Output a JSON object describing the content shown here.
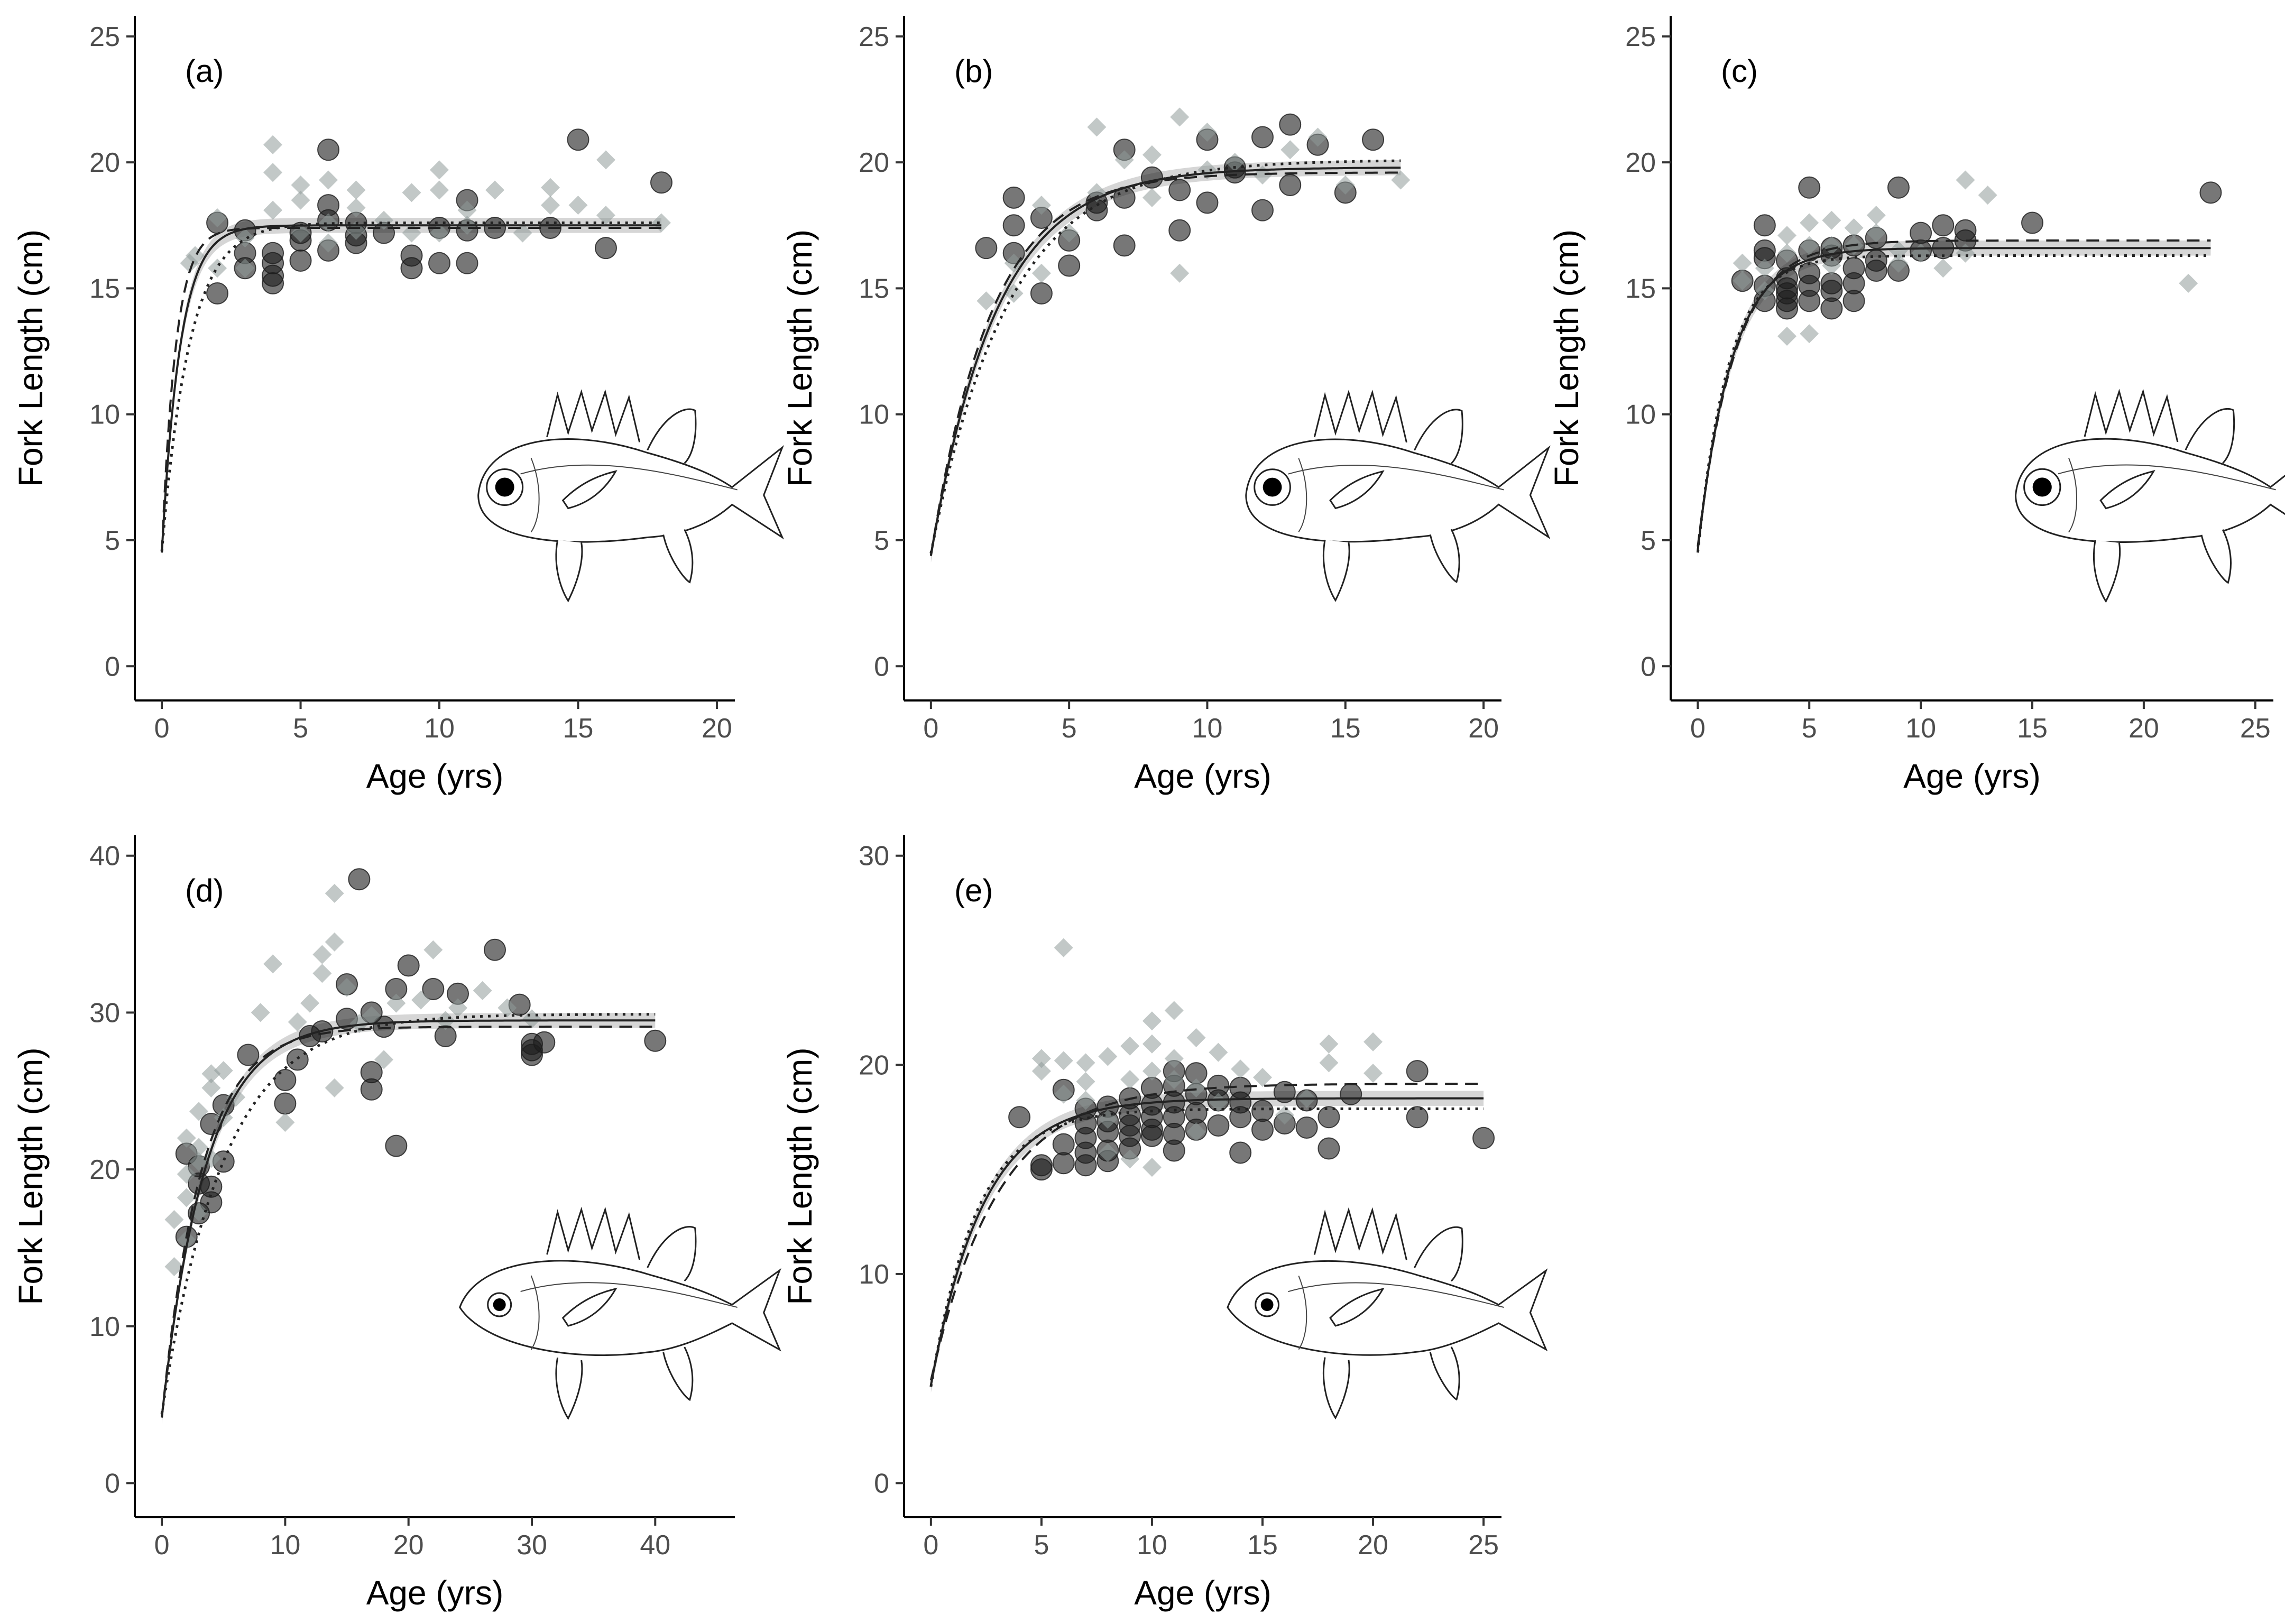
{
  "colors": {
    "female": "#1c1c1c",
    "male": "#8f9a99",
    "axis": "#000000",
    "ci_band": "#d6d6d6"
  },
  "chart_data": [
    {
      "type": "scatter",
      "panel_label": "(a)",
      "xlabel": "Age (yrs)",
      "ylabel": "Fork Length (cm)",
      "xlim": [
        0,
        20
      ],
      "ylim": [
        0,
        25
      ],
      "xticks": [
        0,
        5,
        10,
        15,
        20
      ],
      "yticks": [
        0,
        5,
        10,
        15,
        20,
        25
      ],
      "x_max_fit": 18,
      "curves": {
        "combined": {
          "Linf": 17.5,
          "K": 1.5,
          "t0": -0.2
        },
        "female": {
          "Linf": 17.4,
          "K": 2.0,
          "t0": -0.15
        },
        "male": {
          "Linf": 17.6,
          "K": 1.0,
          "t0": -0.3
        }
      },
      "series": [
        {
          "name": "Female",
          "marker": "circle",
          "x": [
            2,
            2,
            3,
            3,
            3,
            4,
            4,
            4,
            4,
            5,
            5,
            5,
            6,
            6,
            6,
            6,
            7,
            7,
            7,
            8,
            9,
            9,
            10,
            10,
            11,
            11,
            11,
            12,
            14,
            15,
            16,
            18
          ],
          "y": [
            17.6,
            14.8,
            17.3,
            16.4,
            15.8,
            15.5,
            16,
            15.2,
            16.4,
            16.1,
            17.2,
            16.9,
            20.5,
            18.3,
            17.7,
            16.5,
            17.1,
            16.8,
            17.6,
            17.2,
            16.3,
            15.8,
            17.4,
            16,
            18.5,
            17.3,
            16,
            17.4,
            17.4,
            20.9,
            16.6,
            19.2
          ]
        },
        {
          "name": "Male",
          "marker": "diamond",
          "x": [
            1,
            1.2,
            2,
            2,
            3,
            3,
            4,
            4,
            4,
            5,
            5,
            5,
            6,
            6,
            6,
            7,
            7,
            7,
            8,
            9,
            9,
            10,
            10,
            10,
            11,
            11,
            12,
            13,
            14,
            14,
            15,
            16,
            16,
            18
          ],
          "y": [
            16,
            16.3,
            17.8,
            15.8,
            17,
            15.8,
            20.7,
            19.6,
            18.1,
            18.5,
            19.1,
            17.2,
            19.3,
            17.6,
            16.8,
            18.9,
            18.2,
            17.3,
            17.7,
            17.2,
            18.8,
            19.7,
            18.9,
            17.2,
            18.1,
            17.5,
            18.9,
            17.2,
            19,
            18.3,
            18.3,
            20.1,
            17.9,
            17.6
          ]
        }
      ],
      "illustration": "squirrelfish-icon"
    },
    {
      "type": "scatter",
      "panel_label": "(b)",
      "xlabel": "Age (yrs)",
      "ylabel": "Fork Length (cm)",
      "xlim": [
        0,
        20
      ],
      "ylim": [
        0,
        25
      ],
      "xticks": [
        0,
        5,
        10,
        15,
        20
      ],
      "yticks": [
        0,
        5,
        10,
        15,
        20,
        25
      ],
      "x_max_fit": 17,
      "curves": {
        "combined": {
          "Linf": 19.8,
          "K": 0.42,
          "t0": -0.6
        },
        "female": {
          "Linf": 19.6,
          "K": 0.46,
          "t0": -0.55
        },
        "male": {
          "Linf": 20.1,
          "K": 0.36,
          "t0": -0.7
        }
      },
      "series": [
        {
          "name": "Female",
          "marker": "circle",
          "x": [
            2,
            3,
            3,
            3,
            4,
            4,
            5,
            5,
            6,
            6,
            7,
            7,
            7,
            8,
            9,
            9,
            10,
            10,
            11,
            11,
            12,
            12,
            13,
            13,
            14,
            15,
            16
          ],
          "y": [
            16.6,
            18.6,
            17.5,
            16.4,
            14.8,
            17.8,
            16.9,
            15.9,
            18.1,
            18.4,
            20.5,
            16.7,
            18.6,
            19.4,
            17.3,
            18.9,
            20.9,
            18.4,
            19.6,
            19.8,
            21,
            18.1,
            21.5,
            19.1,
            20.7,
            18.8,
            20.9
          ]
        },
        {
          "name": "Male",
          "marker": "diamond",
          "x": [
            2,
            3,
            3,
            4,
            4,
            5,
            6,
            6,
            7,
            8,
            8,
            9,
            9,
            10,
            10,
            11,
            12,
            13,
            14,
            15,
            17
          ],
          "y": [
            14.5,
            14.8,
            16,
            18.3,
            15.6,
            17.2,
            21.4,
            18.8,
            20.1,
            18.6,
            20.3,
            21.8,
            15.6,
            21.2,
            19.7,
            20,
            19.5,
            20.5,
            21,
            19.1,
            19.3
          ]
        }
      ],
      "illustration": "squirrelfish-icon"
    },
    {
      "type": "scatter",
      "panel_label": "(c)",
      "xlabel": "Age (yrs)",
      "ylabel": "Fork Length (cm)",
      "xlim": [
        0,
        25
      ],
      "ylim": [
        0,
        25
      ],
      "xticks": [
        0,
        5,
        10,
        15,
        20,
        25
      ],
      "yticks": [
        0,
        5,
        10,
        15,
        20,
        25
      ],
      "x_max_fit": 23,
      "curves": {
        "combined": {
          "Linf": 16.6,
          "K": 0.65,
          "t0": -0.5
        },
        "female": {
          "Linf": 16.9,
          "K": 0.6,
          "t0": -0.55
        },
        "male": {
          "Linf": 16.3,
          "K": 0.72,
          "t0": -0.45
        }
      },
      "series": [
        {
          "name": "Female",
          "marker": "circle",
          "x": [
            2,
            3,
            3,
            3,
            3,
            3,
            4,
            4,
            4,
            4,
            4,
            4,
            5,
            5,
            5,
            5,
            5,
            6,
            6,
            6,
            6,
            6,
            7,
            7,
            7,
            7,
            8,
            8,
            8,
            9,
            9,
            10,
            10,
            11,
            11,
            12,
            12,
            15,
            23
          ],
          "y": [
            15.3,
            17.5,
            16.5,
            16.2,
            15.1,
            14.5,
            16.1,
            15.4,
            14.8,
            14.5,
            14.2,
            15,
            19,
            15.6,
            15.1,
            14.5,
            16.5,
            16.3,
            15.2,
            14.9,
            14.2,
            16.6,
            15.2,
            16.7,
            14.5,
            15.8,
            17,
            16.1,
            15.7,
            19,
            15.7,
            17.2,
            16.5,
            17.5,
            16.6,
            17.3,
            16.9,
            17.6,
            18.8
          ]
        },
        {
          "name": "Male",
          "marker": "diamond",
          "x": [
            2,
            2,
            3,
            3,
            4,
            4,
            4,
            5,
            5,
            5,
            6,
            6,
            6,
            7,
            7,
            8,
            8,
            9,
            9,
            10,
            11,
            12,
            12,
            13,
            22
          ],
          "y": [
            15.3,
            16,
            15.8,
            14.9,
            17.1,
            13.1,
            16.4,
            17.6,
            13.2,
            16.7,
            17.7,
            15.9,
            16.7,
            16.7,
            17.4,
            17.9,
            17.2,
            16.5,
            16,
            16.4,
            15.8,
            19.3,
            16.4,
            18.7,
            15.2
          ]
        }
      ],
      "illustration": "squirrelfish-icon"
    },
    {
      "type": "scatter",
      "panel_label": "(d)",
      "xlabel": "Age (yrs)",
      "ylabel": "Fork Length (cm)",
      "xlim": [
        0,
        45
      ],
      "ylim": [
        0,
        40
      ],
      "xticks": [
        0,
        10,
        20,
        30,
        40
      ],
      "yticks": [
        0,
        10,
        20,
        30,
        40
      ],
      "x_max_fit": 40,
      "curves": {
        "combined": {
          "Linf": 29.5,
          "K": 0.28,
          "t0": -0.55
        },
        "female": {
          "Linf": 29.1,
          "K": 0.31,
          "t0": -0.5
        },
        "male": {
          "Linf": 29.9,
          "K": 0.2,
          "t0": -0.8
        }
      },
      "series": [
        {
          "name": "Female",
          "marker": "circle",
          "x": [
            2,
            2,
            3,
            3,
            3,
            4,
            4,
            4,
            5,
            5,
            7,
            10,
            10,
            11,
            12,
            13,
            15,
            15,
            16,
            17,
            17,
            17,
            18,
            19,
            19,
            20,
            22,
            23,
            24,
            27,
            29,
            30,
            30,
            30,
            31,
            40
          ],
          "y": [
            21,
            15.7,
            20.2,
            19.1,
            17.2,
            18.9,
            17.9,
            22.9,
            24.1,
            20.5,
            27.3,
            25.7,
            24.2,
            27,
            28.5,
            28.8,
            31.8,
            29.6,
            38.5,
            30,
            26.2,
            25.1,
            29.1,
            31.5,
            21.5,
            33,
            31.5,
            28.5,
            31.2,
            34,
            30.5,
            28,
            27.3,
            27.6,
            28.1,
            28.2
          ]
        },
        {
          "name": "Male",
          "marker": "diamond",
          "x": [
            1,
            1,
            2,
            2,
            2,
            2,
            3,
            3,
            3,
            3,
            4,
            4,
            4,
            5,
            5,
            6,
            8,
            9,
            10,
            11,
            12,
            13,
            13,
            14,
            14,
            14,
            15,
            16,
            17,
            18,
            19,
            21,
            22,
            23,
            24,
            26,
            28,
            30
          ],
          "y": [
            13.8,
            16.8,
            18.2,
            19.7,
            22,
            15.5,
            23.7,
            21.4,
            20.5,
            17.3,
            25.2,
            26.1,
            20.7,
            23.3,
            26.3,
            24.6,
            30,
            33.1,
            23,
            29.4,
            30.6,
            33.7,
            32.5,
            37.6,
            34.5,
            25.2,
            31.6,
            29.3,
            29.8,
            27,
            30.6,
            30.8,
            34,
            29.5,
            30.3,
            31.4,
            30.3,
            29.6
          ]
        }
      ],
      "illustration": "soldierfish-icon"
    },
    {
      "type": "scatter",
      "panel_label": "(e)",
      "xlabel": "Age (yrs)",
      "ylabel": "Fork Length (cm)",
      "xlim": [
        0,
        25
      ],
      "ylim": [
        0,
        30
      ],
      "xticks": [
        0,
        5,
        10,
        15,
        20,
        25
      ],
      "yticks": [
        0,
        10,
        20,
        30
      ],
      "x_max_fit": 25,
      "curves": {
        "combined": {
          "Linf": 18.4,
          "K": 0.42,
          "t0": -0.7
        },
        "female": {
          "Linf": 19.1,
          "K": 0.33,
          "t0": -0.9
        },
        "male": {
          "Linf": 17.9,
          "K": 0.48,
          "t0": -0.62
        }
      },
      "series": [
        {
          "name": "Female",
          "marker": "circle",
          "x": [
            4,
            5,
            5,
            6,
            6,
            6,
            7,
            7,
            7,
            7,
            7,
            8,
            8,
            8,
            8,
            8,
            9,
            9,
            9,
            9,
            9,
            10,
            10,
            10,
            10,
            10,
            11,
            11,
            11,
            11,
            11,
            11,
            12,
            12,
            12,
            12,
            13,
            13,
            13,
            14,
            14,
            14,
            14,
            15,
            15,
            16,
            16,
            17,
            17,
            18,
            18,
            19,
            22,
            22,
            25
          ],
          "y": [
            17.5,
            15.2,
            15,
            18.8,
            16.2,
            15.3,
            17.9,
            17.2,
            16.5,
            15.8,
            15.2,
            18,
            17.3,
            16.8,
            15.9,
            15.4,
            17.6,
            16.6,
            16,
            18.4,
            17.1,
            18.1,
            17.5,
            16.9,
            16.6,
            18.9,
            19.7,
            19,
            18.2,
            17.5,
            16.7,
            15.9,
            19.6,
            18.6,
            17.7,
            16.9,
            19,
            18.3,
            17.1,
            18.9,
            18.2,
            17.5,
            15.8,
            17.8,
            16.9,
            18.7,
            17.2,
            18.3,
            17,
            17.5,
            16,
            18.6,
            19.7,
            17.5,
            16.5
          ]
        },
        {
          "name": "Male",
          "marker": "diamond",
          "x": [
            5,
            5,
            6,
            6,
            6,
            7,
            7,
            7,
            8,
            8,
            8,
            9,
            9,
            9,
            10,
            10,
            10,
            10,
            11,
            11,
            11,
            12,
            12,
            12,
            13,
            13,
            14,
            15,
            16,
            17,
            18,
            18,
            20,
            20
          ],
          "y": [
            20.3,
            19.7,
            25.6,
            20.2,
            18.6,
            20.1,
            19.2,
            18.3,
            20.4,
            17.4,
            15.8,
            20.9,
            19.3,
            15.5,
            22.1,
            21,
            19.7,
            15.1,
            22.6,
            20.3,
            19.3,
            21.3,
            18.9,
            16.8,
            20.6,
            18.2,
            19.8,
            19.4,
            17.6,
            18.4,
            21,
            20.1,
            21.1,
            19.6
          ]
        }
      ],
      "illustration": "soldierfish-icon"
    }
  ]
}
